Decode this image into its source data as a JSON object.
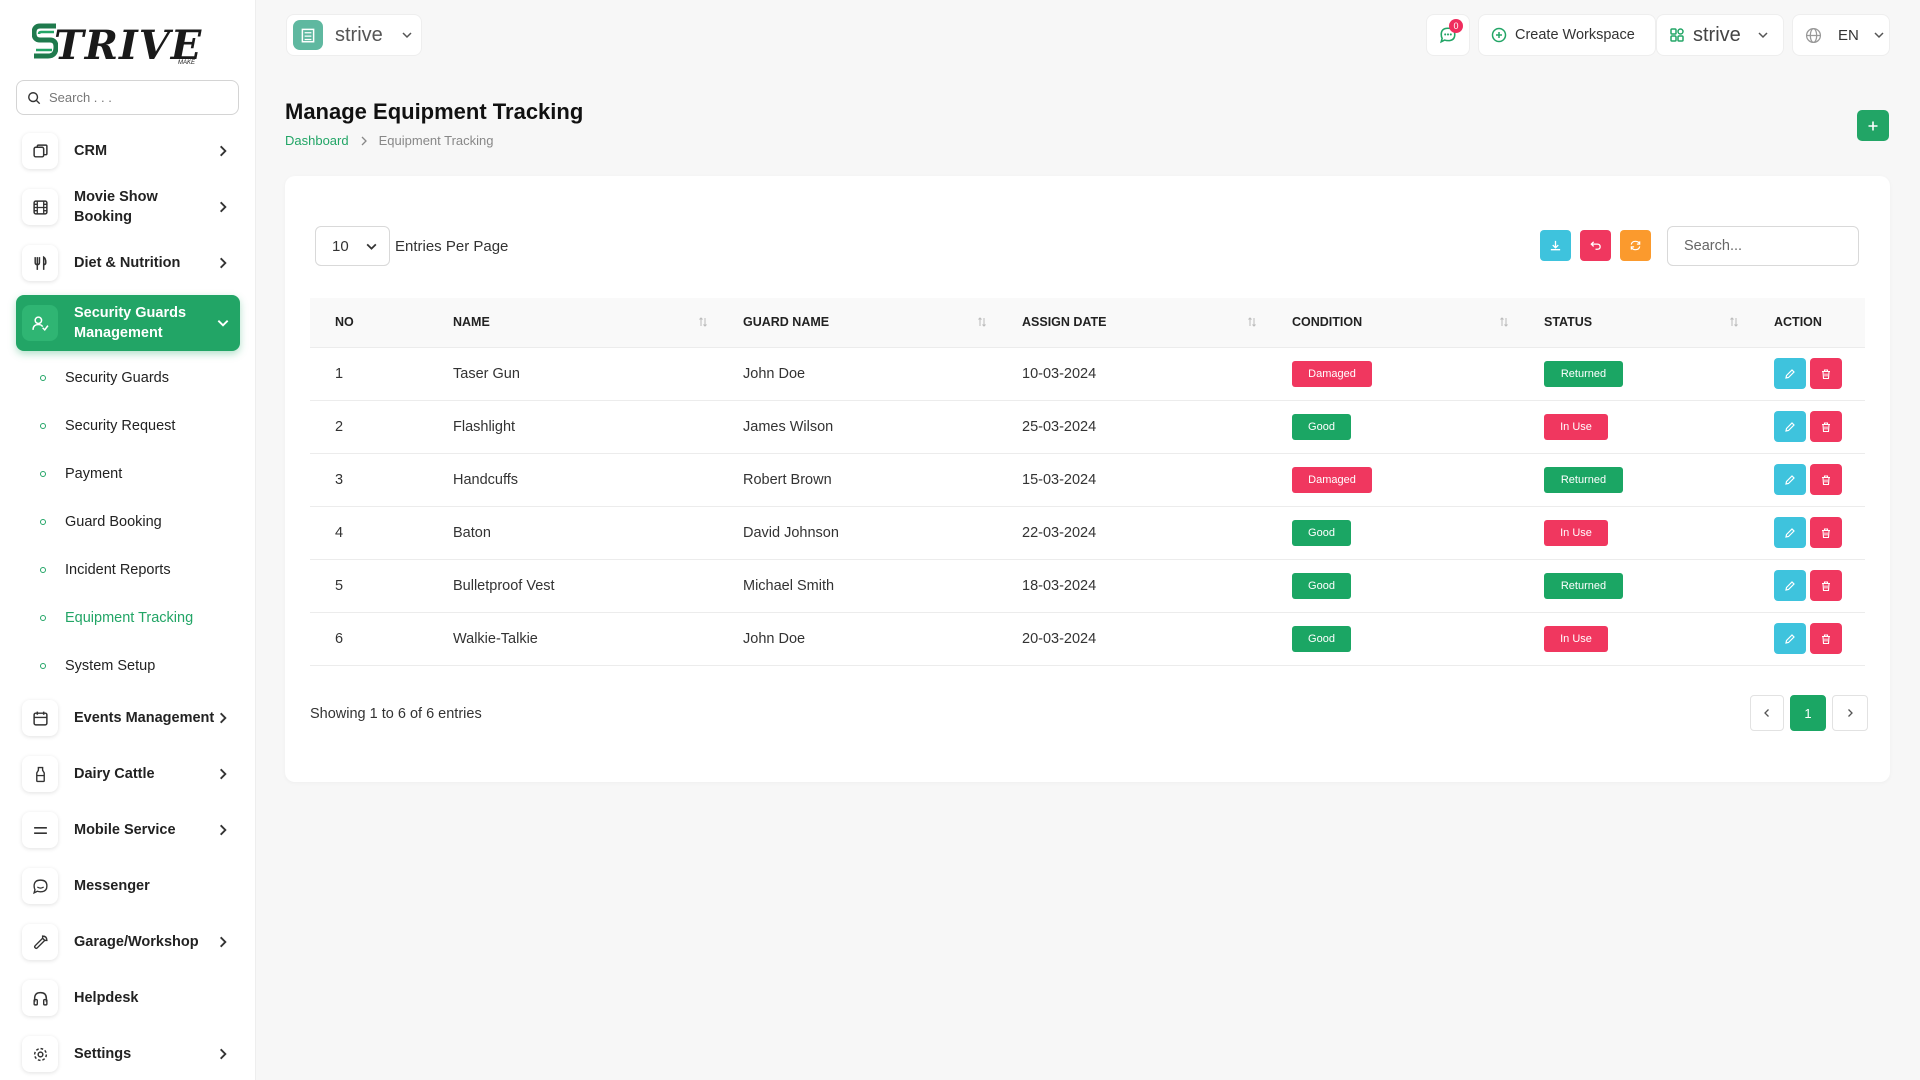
{
  "brand": {
    "logo_text": "TRIVE",
    "logo_sub": "MAKE"
  },
  "sidebar": {
    "search_placeholder": "Search . . .",
    "items": [
      {
        "label": "CRM",
        "icon": "layers-icon",
        "chevron": true
      },
      {
        "label": "Movie Show Booking",
        "icon": "film-icon",
        "chevron": true
      },
      {
        "label": "Diet & Nutrition",
        "icon": "utensils-icon",
        "chevron": true
      },
      {
        "label": "Security Guards Management",
        "icon": "user-check-icon",
        "chevron": true,
        "active": true
      },
      {
        "label": "Events Management",
        "icon": "calendar-icon",
        "chevron": true
      },
      {
        "label": "Dairy Cattle",
        "icon": "bottle-icon",
        "chevron": true
      },
      {
        "label": "Mobile Service",
        "icon": "menu-icon",
        "chevron": true
      },
      {
        "label": "Messenger",
        "icon": "chat-icon",
        "chevron": false
      },
      {
        "label": "Garage/Workshop",
        "icon": "wrench-icon",
        "chevron": true
      },
      {
        "label": "Helpdesk",
        "icon": "headphones-icon",
        "chevron": false
      },
      {
        "label": "Settings",
        "icon": "gear-icon",
        "chevron": true
      }
    ],
    "subitems": [
      {
        "label": "Security Guards"
      },
      {
        "label": "Security Request"
      },
      {
        "label": "Payment"
      },
      {
        "label": "Guard Booking"
      },
      {
        "label": "Incident Reports"
      },
      {
        "label": "Equipment Tracking",
        "current": true
      },
      {
        "label": "System Setup"
      }
    ]
  },
  "header": {
    "workspace": "strive",
    "notification_count": "0",
    "create_workspace": "Create Workspace",
    "workspace2": "strive",
    "language": "EN"
  },
  "page": {
    "title": "Manage Equipment Tracking",
    "breadcrumb_home": "Dashboard",
    "breadcrumb_current": "Equipment Tracking"
  },
  "table": {
    "per_page": "10",
    "per_page_label": "Entries Per Page",
    "search_placeholder": "Search...",
    "columns": [
      "NO",
      "NAME",
      "GUARD NAME",
      "ASSIGN DATE",
      "CONDITION",
      "STATUS",
      "ACTION"
    ],
    "rows": [
      {
        "no": "1",
        "name": "Taser Gun",
        "guard": "John Doe",
        "date": "10-03-2024",
        "condition": "Damaged",
        "status": "Returned"
      },
      {
        "no": "2",
        "name": "Flashlight",
        "guard": "James Wilson",
        "date": "25-03-2024",
        "condition": "Good",
        "status": "In Use"
      },
      {
        "no": "3",
        "name": "Handcuffs",
        "guard": "Robert Brown",
        "date": "15-03-2024",
        "condition": "Damaged",
        "status": "Returned"
      },
      {
        "no": "4",
        "name": "Baton",
        "guard": "David Johnson",
        "date": "22-03-2024",
        "condition": "Good",
        "status": "In Use"
      },
      {
        "no": "5",
        "name": "Bulletproof Vest",
        "guard": "Michael Smith",
        "date": "18-03-2024",
        "condition": "Good",
        "status": "Returned"
      },
      {
        "no": "6",
        "name": "Walkie-Talkie",
        "guard": "John Doe",
        "date": "20-03-2024",
        "condition": "Good",
        "status": "In Use"
      }
    ],
    "showing": "Showing 1 to 6 of 6 entries",
    "current_page": "1"
  },
  "colors": {
    "accent": "#22a566",
    "danger": "#f0375f",
    "info": "#3ec3dd",
    "warning": "#fb9a2d"
  }
}
